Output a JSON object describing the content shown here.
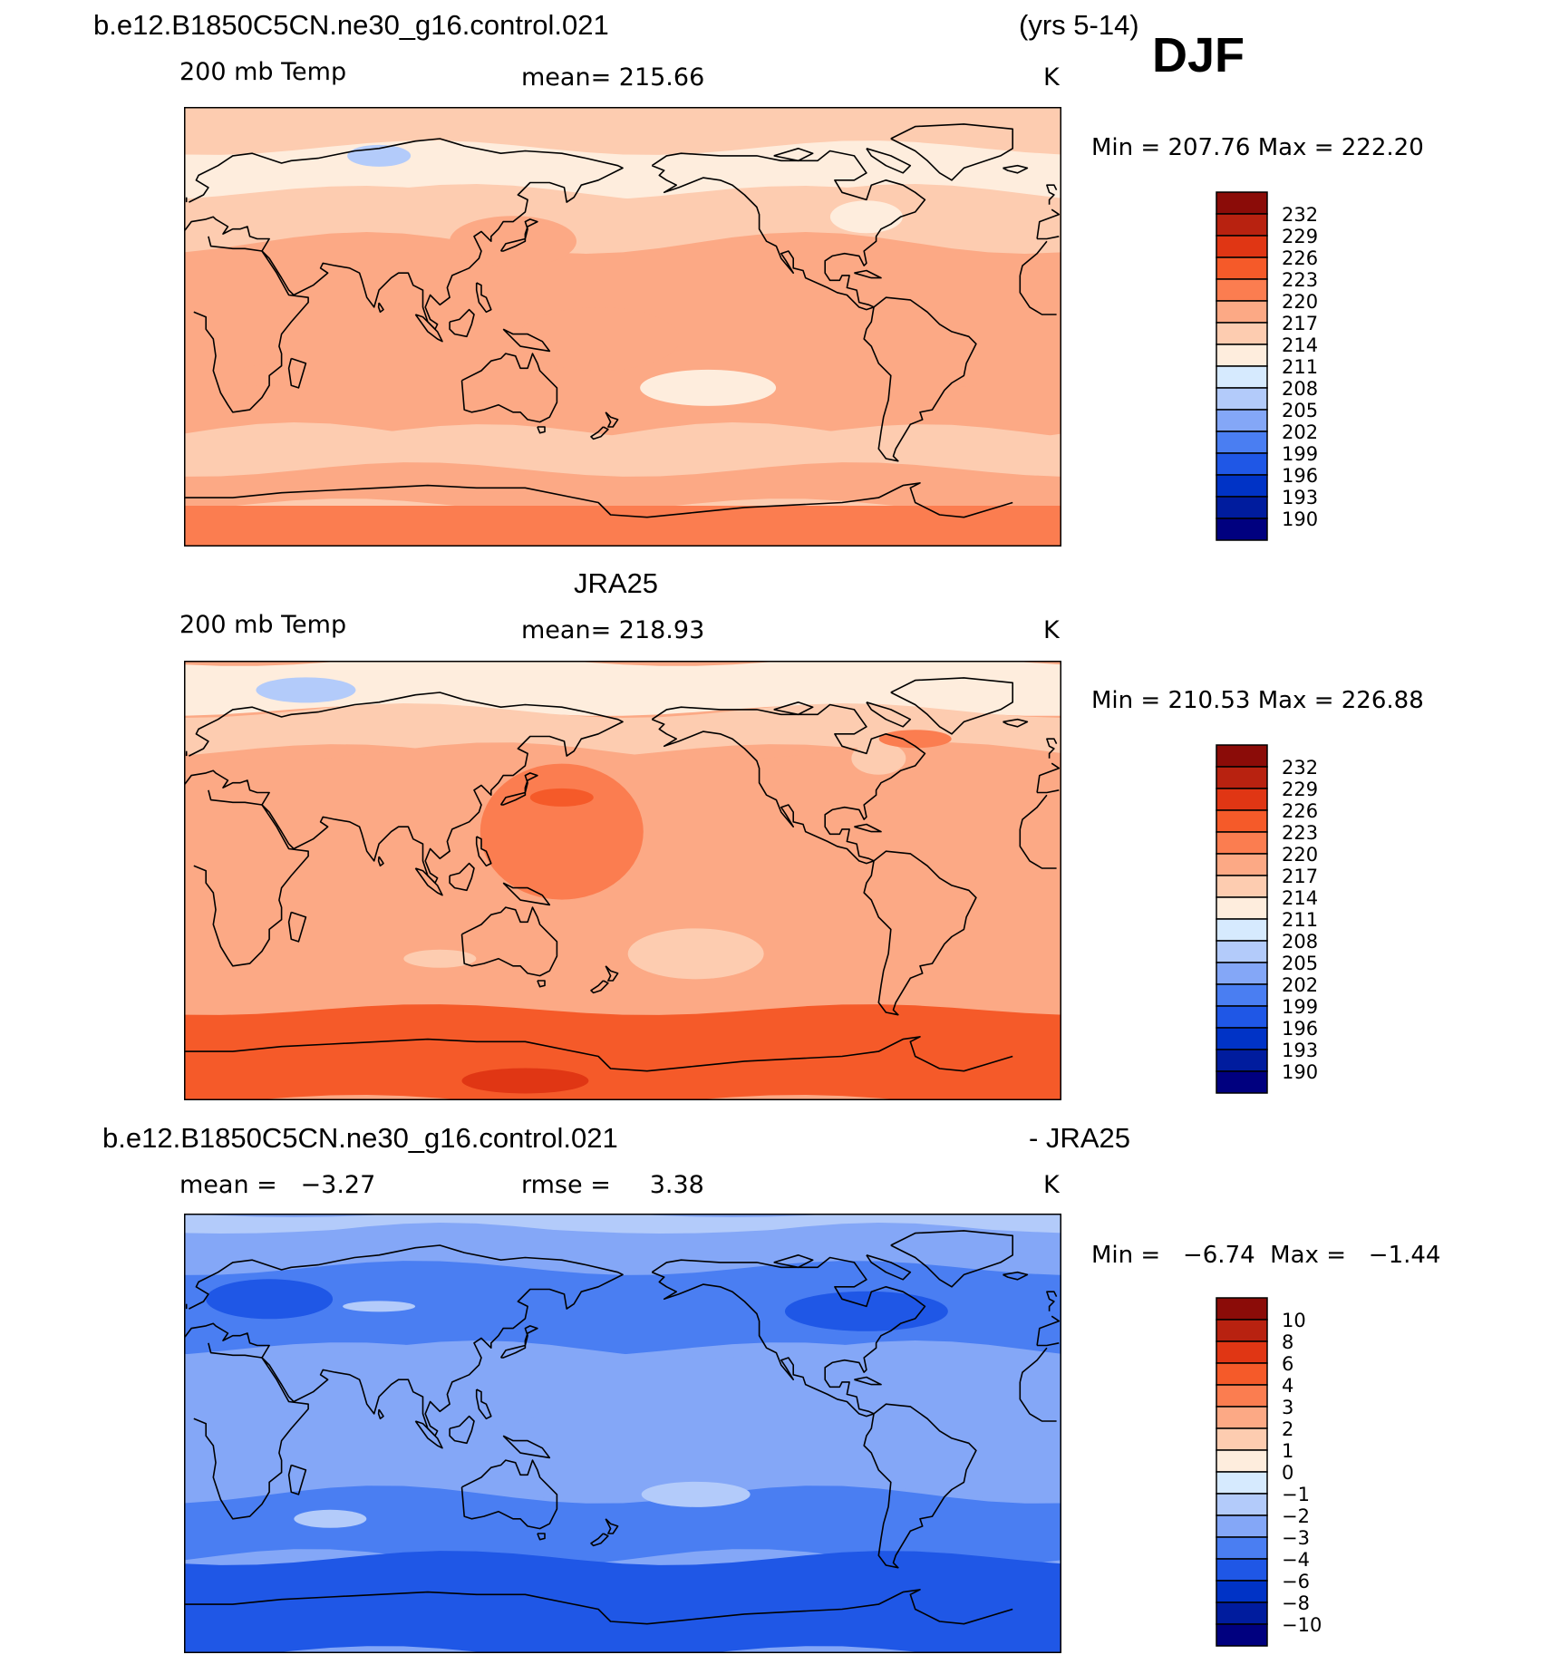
{
  "header": {
    "case_name": "b.e12.B1850C5CN.ne30_g16.control.021",
    "years": "(yrs 5-14)",
    "season": "DJF"
  },
  "colors": {
    "abs_scale": [
      "#00007f",
      "#001c9e",
      "#0033c6",
      "#1f57e6",
      "#4a7ef2",
      "#84a7f7",
      "#b3cbfa",
      "#d6eafe",
      "#feeddd",
      "#fdccb0",
      "#fca985",
      "#fb7d50",
      "#f55a29",
      "#e03614",
      "#b82210",
      "#8b0c08"
    ],
    "diff_scale": [
      "#00007f",
      "#001c9e",
      "#0033c6",
      "#1f57e6",
      "#4a7ef2",
      "#84a7f7",
      "#b3cbfa",
      "#d6eafe",
      "#feeddd",
      "#fdccb0",
      "#fca985",
      "#fb7d50",
      "#f55a29",
      "#e03614",
      "#b82210",
      "#8b0c08"
    ],
    "coast": "#000000"
  },
  "panels": [
    {
      "id": "model",
      "heading": "",
      "left_label": "200 mb Temp",
      "center_label": "mean= 215.66",
      "unit": "K",
      "minmax": "Min = 207.76  Max = 222.20",
      "colorbar_labels": [
        "232",
        "229",
        "226",
        "223",
        "220",
        "217",
        "214",
        "211",
        "208",
        "205",
        "202",
        "199",
        "196",
        "193",
        "190"
      ]
    },
    {
      "id": "obs",
      "heading": "JRA25",
      "left_label": "200 mb Temp",
      "center_label": "mean= 218.93",
      "unit": "K",
      "minmax": "Min = 210.53  Max = 226.88",
      "colorbar_labels": [
        "232",
        "229",
        "226",
        "223",
        "220",
        "217",
        "214",
        "211",
        "208",
        "205",
        "202",
        "199",
        "196",
        "193",
        "190"
      ]
    },
    {
      "id": "diff",
      "heading": "b.e12.B1850C5CN.ne30_g16.control.021",
      "heading_right": "- JRA25",
      "left_label": "mean =   −3.27",
      "center_label": "rmse =     3.38",
      "unit": "K",
      "minmax": "Min =   −6.74  Max =   −1.44",
      "colorbar_labels": [
        "10",
        "8",
        "6",
        "4",
        "3",
        "2",
        "1",
        "0",
        "−1",
        "−2",
        "−3",
        "−4",
        "−6",
        "−8",
        "−10"
      ]
    }
  ],
  "chart_data": [
    {
      "type": "heatmap",
      "title": "200 mb Temp",
      "stat": "mean= 215.66",
      "min": 207.76,
      "max": 222.2,
      "unit": "K",
      "levels": [
        190,
        193,
        196,
        199,
        202,
        205,
        208,
        211,
        214,
        217,
        220,
        223,
        226,
        229,
        232
      ],
      "projection": "cylindrical equidistant, Pacific-centered"
    },
    {
      "type": "heatmap",
      "title": "200 mb Temp",
      "stat": "mean= 218.93",
      "min": 210.53,
      "max": 226.88,
      "unit": "K",
      "levels": [
        190,
        193,
        196,
        199,
        202,
        205,
        208,
        211,
        214,
        217,
        220,
        223,
        226,
        229,
        232
      ],
      "projection": "cylindrical equidistant, Pacific-centered"
    },
    {
      "type": "heatmap",
      "title": "- JRA25",
      "stat": "mean = -3.27, rmse = 3.38",
      "min": -6.74,
      "max": -1.44,
      "unit": "K",
      "levels": [
        -10,
        -8,
        -6,
        -4,
        -3,
        -2,
        -1,
        0,
        1,
        2,
        3,
        4,
        6,
        8,
        10
      ],
      "projection": "cylindrical equidistant, Pacific-centered"
    }
  ]
}
